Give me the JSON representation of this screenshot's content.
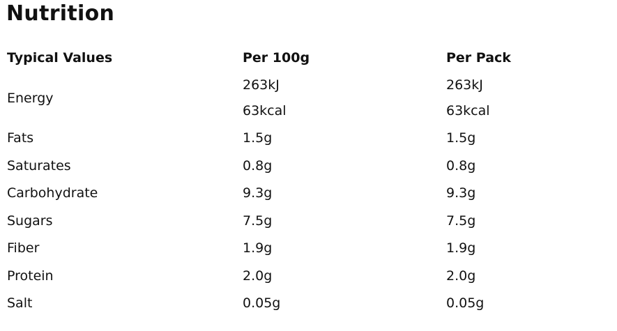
{
  "title": "Nutrition",
  "headers": [
    "Typical Values",
    "Per 100g",
    "Per Pack"
  ],
  "energy": {
    "label": "Energy",
    "per100g": [
      "263kJ",
      "63kcal"
    ],
    "perPack": [
      "263kJ",
      "63kcal"
    ]
  },
  "rows": [
    {
      "label": "Fats",
      "per100g": "1.5g",
      "perPack": "1.5g"
    },
    {
      "label": "Saturates",
      "per100g": "0.8g",
      "perPack": "0.8g"
    },
    {
      "label": "Carbohydrate",
      "per100g": "9.3g",
      "perPack": "9.3g"
    },
    {
      "label": "Sugars",
      "per100g": "7.5g",
      "perPack": "7.5g"
    },
    {
      "label": "Fiber",
      "per100g": "1.9g",
      "perPack": "1.9g"
    },
    {
      "label": "Protein",
      "per100g": "2.0g",
      "perPack": "2.0g"
    },
    {
      "label": "Salt",
      "per100g": "0.05g",
      "perPack": "0.05g"
    }
  ]
}
